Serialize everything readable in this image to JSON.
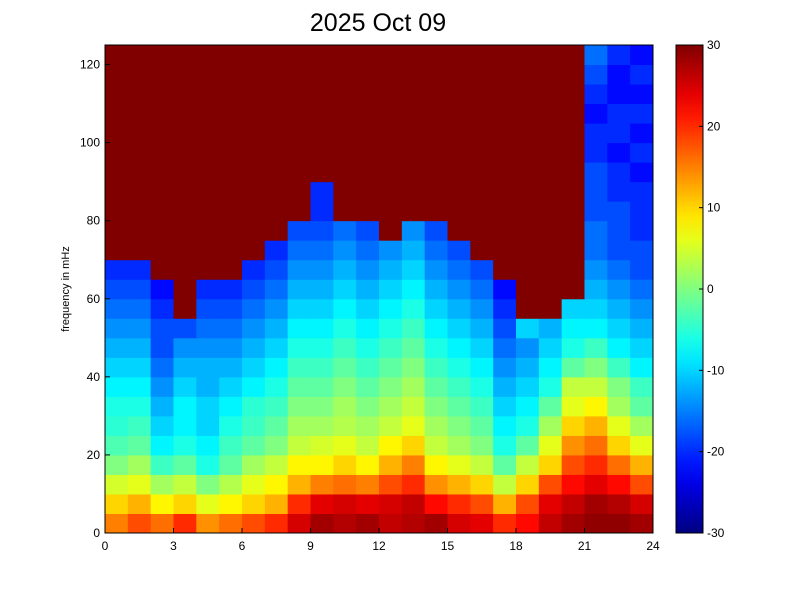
{
  "chart_data": {
    "type": "heatmap",
    "title": "2025 Oct 09",
    "y_label": "frequency in mHz",
    "colormap": "jet",
    "x_bins": [
      0,
      1,
      2,
      3,
      4,
      5,
      6,
      7,
      8,
      9,
      10,
      11,
      12,
      13,
      14,
      15,
      16,
      17,
      18,
      19,
      20,
      21,
      22,
      23,
      24
    ],
    "y_bins": [
      0,
      5,
      10,
      15,
      20,
      25,
      30,
      35,
      40,
      45,
      50,
      55,
      60,
      65,
      70,
      75,
      80,
      85,
      90,
      95,
      100,
      105,
      110,
      115,
      120,
      125
    ],
    "values": [
      [
        15,
        18,
        16,
        20,
        14,
        16,
        18,
        20,
        25,
        28,
        27,
        28,
        26,
        27,
        28,
        25,
        24,
        20,
        22,
        26,
        28,
        29,
        29,
        28
      ],
      [
        10,
        12,
        8,
        10,
        6,
        8,
        10,
        12,
        20,
        24,
        25,
        24,
        25,
        26,
        22,
        20,
        18,
        12,
        18,
        24,
        26,
        28,
        27,
        25
      ],
      [
        5,
        6,
        2,
        4,
        0,
        3,
        6,
        8,
        12,
        15,
        16,
        15,
        18,
        20,
        14,
        12,
        10,
        4,
        10,
        18,
        22,
        24,
        22,
        18
      ],
      [
        0,
        2,
        -4,
        -2,
        -6,
        -2,
        2,
        4,
        8,
        8,
        10,
        8,
        12,
        15,
        8,
        6,
        4,
        -2,
        4,
        10,
        18,
        20,
        16,
        12
      ],
      [
        -3,
        -2,
        -8,
        -6,
        -8,
        -4,
        -2,
        0,
        4,
        5,
        6,
        4,
        8,
        10,
        4,
        2,
        0,
        -6,
        -2,
        6,
        14,
        16,
        10,
        6
      ],
      [
        -5,
        -4,
        -10,
        -8,
        -10,
        -6,
        -4,
        -2,
        2,
        2,
        3,
        2,
        4,
        6,
        2,
        0,
        -2,
        -8,
        -6,
        2,
        10,
        12,
        6,
        2
      ],
      [
        -6,
        -6,
        -12,
        -8,
        -10,
        -8,
        -5,
        -4,
        0,
        0,
        2,
        0,
        2,
        4,
        0,
        -2,
        -4,
        -10,
        -8,
        -2,
        6,
        8,
        2,
        -2
      ],
      [
        -8,
        -8,
        -14,
        -10,
        -12,
        -10,
        -8,
        -6,
        -2,
        -2,
        0,
        -2,
        0,
        2,
        -2,
        -4,
        -6,
        -12,
        -10,
        -6,
        4,
        4,
        0,
        -4
      ],
      [
        -10,
        -10,
        -16,
        -12,
        -12,
        -12,
        -10,
        -8,
        -4,
        -4,
        -2,
        -4,
        -2,
        0,
        -4,
        -6,
        -8,
        -14,
        -12,
        -8,
        -2,
        0,
        -4,
        -8
      ],
      [
        -12,
        -12,
        -18,
        -14,
        -14,
        -14,
        -12,
        -10,
        -6,
        -6,
        -4,
        -6,
        -4,
        -2,
        -6,
        -8,
        -10,
        -16,
        -14,
        -10,
        -6,
        -4,
        -8,
        -10
      ],
      [
        -14,
        -14,
        -18,
        -18,
        -16,
        -16,
        -14,
        -12,
        -8,
        -8,
        -6,
        -8,
        -6,
        -4,
        -8,
        -10,
        -12,
        -18,
        -10,
        -12,
        -8,
        -8,
        -10,
        -12
      ],
      [
        -16,
        -16,
        -20,
        30,
        -18,
        -18,
        -16,
        -14,
        -10,
        -10,
        -8,
        -10,
        -8,
        -6,
        -10,
        -12,
        -14,
        -20,
        30,
        30,
        -10,
        -10,
        -12,
        -14
      ],
      [
        -18,
        -18,
        -22,
        30,
        -20,
        -20,
        -18,
        -16,
        -12,
        -12,
        -10,
        -12,
        -10,
        -8,
        -12,
        -14,
        -16,
        -22,
        30,
        30,
        30,
        -12,
        -14,
        -16
      ],
      [
        -20,
        -20,
        30,
        30,
        30,
        30,
        -20,
        -18,
        -14,
        -14,
        -12,
        -14,
        -12,
        -10,
        -14,
        -16,
        -18,
        30,
        30,
        30,
        30,
        -14,
        -16,
        -18
      ],
      [
        30,
        30,
        30,
        30,
        30,
        30,
        30,
        -20,
        -16,
        -16,
        -14,
        -16,
        -14,
        -12,
        -16,
        -18,
        30,
        30,
        30,
        30,
        30,
        -16,
        -18,
        -18
      ],
      [
        30,
        30,
        30,
        30,
        30,
        30,
        30,
        30,
        -18,
        -18,
        -16,
        -18,
        30,
        -14,
        -18,
        30,
        30,
        30,
        30,
        30,
        30,
        -16,
        -18,
        -20
      ],
      [
        30,
        30,
        30,
        30,
        30,
        30,
        30,
        30,
        30,
        -20,
        30,
        30,
        30,
        30,
        30,
        30,
        30,
        30,
        30,
        30,
        30,
        -18,
        -18,
        -20
      ],
      [
        30,
        30,
        30,
        30,
        30,
        30,
        30,
        30,
        30,
        -20,
        30,
        30,
        30,
        30,
        30,
        30,
        30,
        30,
        30,
        30,
        30,
        -18,
        -20,
        -20
      ],
      [
        30,
        30,
        30,
        30,
        30,
        30,
        30,
        30,
        30,
        30,
        30,
        30,
        30,
        30,
        30,
        30,
        30,
        30,
        30,
        30,
        30,
        -18,
        -20,
        -22
      ],
      [
        30,
        30,
        30,
        30,
        30,
        30,
        30,
        30,
        30,
        30,
        30,
        30,
        30,
        30,
        30,
        30,
        30,
        30,
        30,
        30,
        30,
        -20,
        -22,
        -20
      ],
      [
        30,
        30,
        30,
        30,
        30,
        30,
        30,
        30,
        30,
        30,
        30,
        30,
        30,
        30,
        30,
        30,
        30,
        30,
        30,
        30,
        30,
        -20,
        -20,
        -22
      ],
      [
        30,
        30,
        30,
        30,
        30,
        30,
        30,
        30,
        30,
        30,
        30,
        30,
        30,
        30,
        30,
        30,
        30,
        30,
        30,
        30,
        30,
        -22,
        -20,
        -20
      ],
      [
        30,
        30,
        30,
        30,
        30,
        30,
        30,
        30,
        30,
        30,
        30,
        30,
        30,
        30,
        30,
        30,
        30,
        30,
        30,
        30,
        30,
        -20,
        -22,
        -22
      ],
      [
        30,
        30,
        30,
        30,
        30,
        30,
        30,
        30,
        30,
        30,
        30,
        30,
        30,
        30,
        30,
        30,
        30,
        30,
        30,
        30,
        30,
        -18,
        -22,
        -20
      ],
      [
        30,
        30,
        30,
        30,
        30,
        30,
        30,
        30,
        30,
        30,
        30,
        30,
        30,
        30,
        30,
        30,
        30,
        30,
        30,
        30,
        30,
        -16,
        -20,
        -22
      ]
    ],
    "xlim": [
      0,
      24
    ],
    "xticks": [
      0,
      3,
      6,
      9,
      12,
      15,
      18,
      21,
      24
    ],
    "ylim": [
      0,
      125
    ],
    "yticks": [
      0,
      20,
      40,
      60,
      80,
      100,
      120
    ],
    "clim": [
      -30,
      30
    ],
    "cticks": [
      -30,
      -20,
      -10,
      0,
      10,
      20,
      30
    ]
  }
}
